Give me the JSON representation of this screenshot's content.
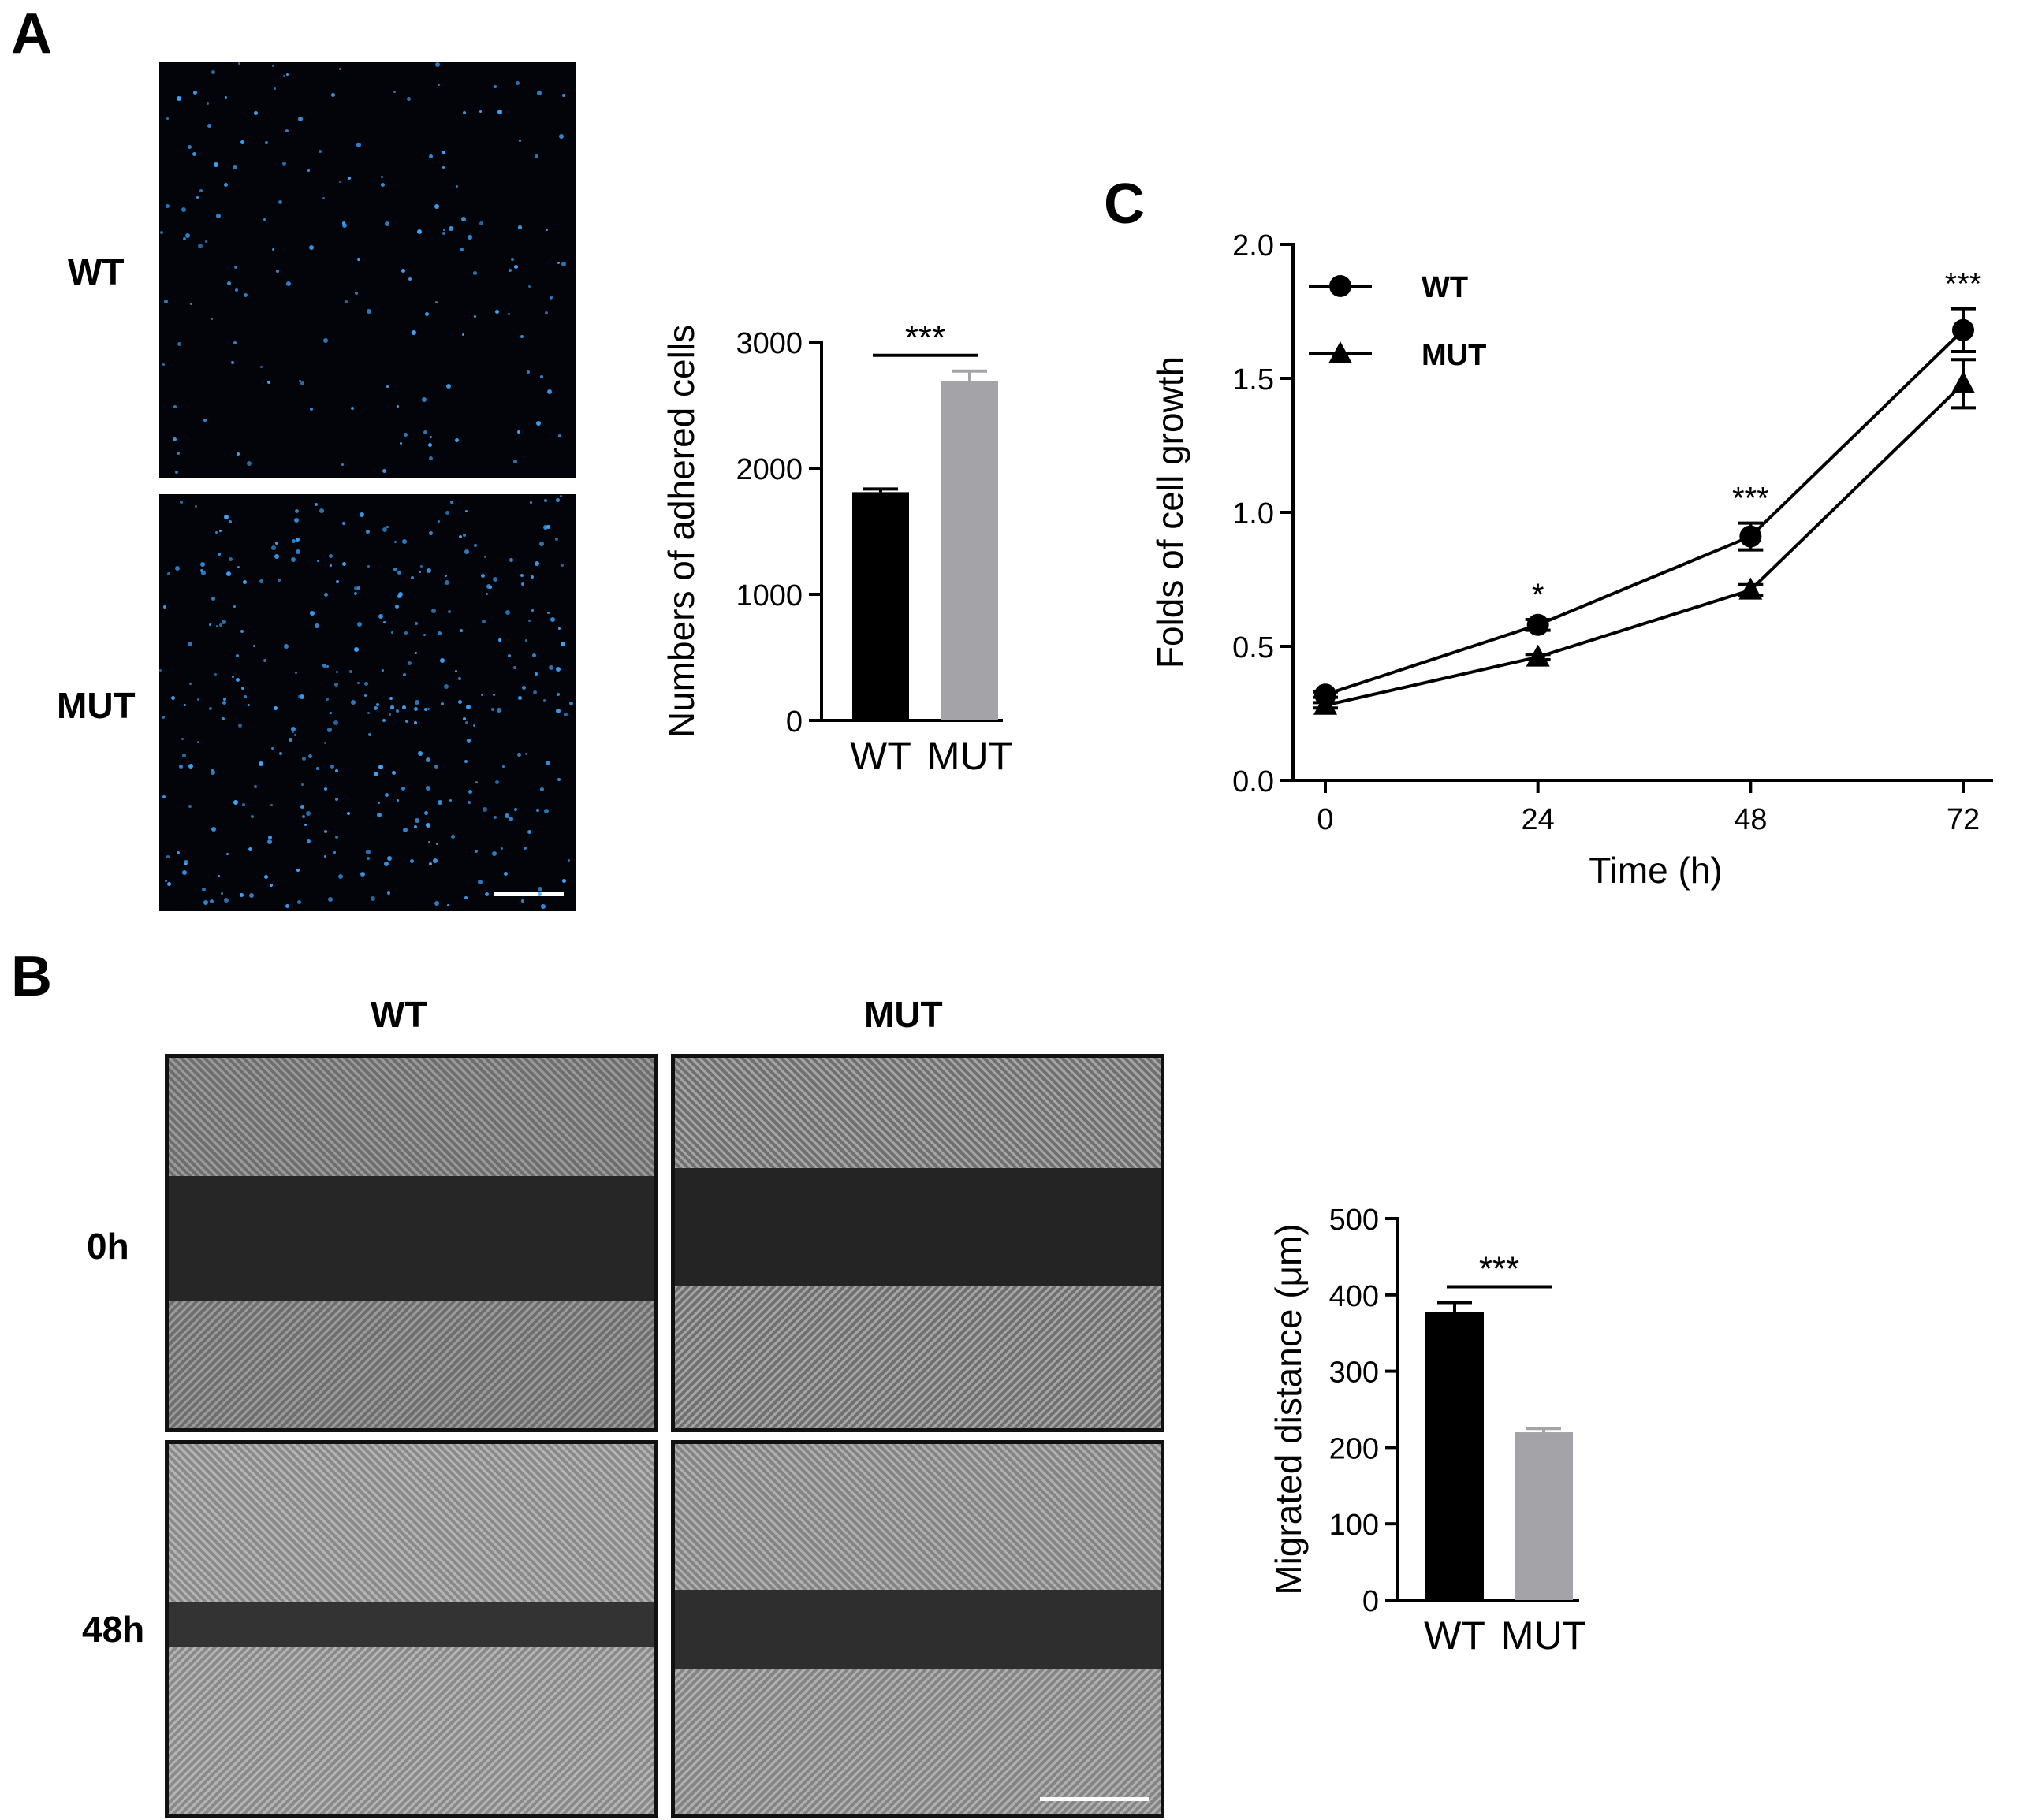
{
  "panels": {
    "A": {
      "letter": "A",
      "row_labels": [
        "WT",
        "MUT"
      ],
      "chart": {
        "type": "bar",
        "categories": [
          "WT",
          "MUT"
        ],
        "values": [
          1810,
          2690
        ],
        "errors": [
          25,
          80
        ],
        "ylabel": "Numbers of adhered cells",
        "ylim": [
          0,
          3000
        ],
        "yticks": [
          0,
          1000,
          2000,
          3000
        ],
        "significance": "***",
        "bar_colors": [
          "#000000",
          "#a3a3a8"
        ]
      }
    },
    "B": {
      "letter": "B",
      "col_labels": [
        "WT",
        "MUT"
      ],
      "row_labels": [
        "0h",
        "48h"
      ],
      "chart": {
        "type": "bar",
        "categories": [
          "WT",
          "MUT"
        ],
        "values": [
          378,
          220
        ],
        "errors": [
          12,
          5
        ],
        "ylabel": "Migrated distance  (μm)",
        "ylim": [
          0,
          500
        ],
        "yticks": [
          0,
          100,
          200,
          300,
          400,
          500
        ],
        "significance": "***",
        "bar_colors": [
          "#000000",
          "#a3a3a8"
        ]
      }
    },
    "C": {
      "letter": "C",
      "chart": {
        "type": "line",
        "x": [
          0,
          24,
          48,
          72
        ],
        "xlabel": "Time (h)",
        "ylabel": "Folds of cell growth",
        "xlim": [
          0,
          72
        ],
        "ylim": [
          0,
          2.0
        ],
        "yticks": [
          "0.0",
          "0.5",
          "1.0",
          "1.5",
          "2.0"
        ],
        "xticks": [
          0,
          24,
          48,
          72
        ],
        "legend_position": "top-left",
        "series": [
          {
            "name": "WT",
            "marker": "circle",
            "values": [
              0.32,
              0.58,
              0.91,
              1.68
            ],
            "errors": [
              0.01,
              0.02,
              0.05,
              0.08
            ]
          },
          {
            "name": "MUT",
            "marker": "triangle",
            "values": [
              0.28,
              0.46,
              0.71,
              1.48
            ],
            "errors": [
              0.01,
              0.01,
              0.02,
              0.09
            ]
          }
        ],
        "significance": [
          "",
          "*",
          "***",
          "***"
        ]
      }
    }
  }
}
